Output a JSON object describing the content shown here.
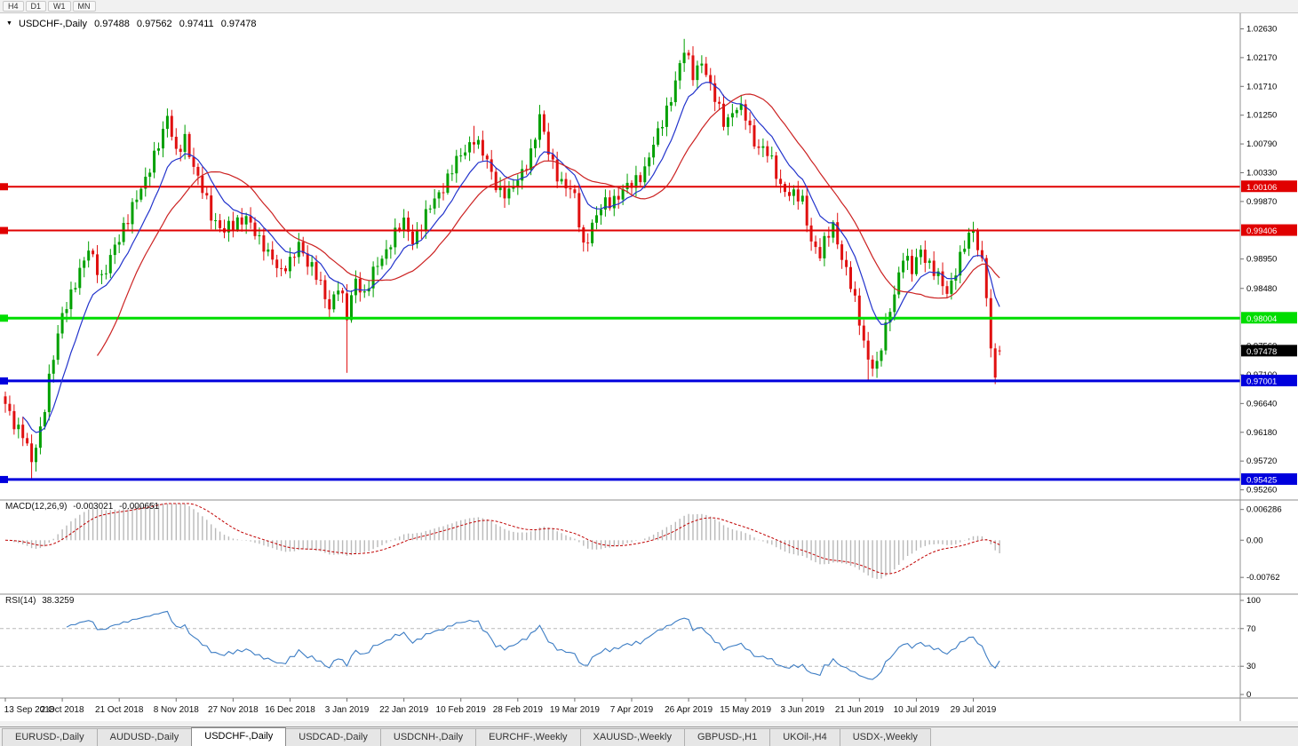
{
  "toolbar": {
    "timeframes": [
      "H4",
      "D1",
      "W1",
      "MN"
    ]
  },
  "chart_header": {
    "symbol": "USDCHF-,Daily",
    "open": "0.97488",
    "high": "0.97562",
    "low": "0.97411",
    "close": "0.97478"
  },
  "macd_panel": {
    "label": "MACD(12,26,9)",
    "value_main": "-0.003021",
    "value_signal": "-0.000651"
  },
  "rsi_panel": {
    "label": "RSI(14)",
    "value": "38.3259"
  },
  "tabs": {
    "active": "USDCHF-,Daily",
    "items": [
      "EURUSD-,Daily",
      "AUDUSD-,Daily",
      "USDCHF-,Daily",
      "USDCAD-,Daily",
      "USDCNH-,Daily",
      "EURCHF-,Weekly",
      "XAUUSD-,Weekly",
      "GBPUSD-,H1",
      "UKOil-,H4",
      "USDX-,Weekly"
    ]
  },
  "chart_data": {
    "type": "candlestick",
    "symbol": "USDCHF-",
    "timeframe": "Daily",
    "title": "USDCHF-,Daily",
    "last_bar": {
      "open": 0.97488,
      "high": 0.97562,
      "low": 0.97411,
      "close": 0.97478
    },
    "x_ticks": [
      "13 Sep 2018",
      "2 Oct 2018",
      "21 Oct 2018",
      "8 Nov 2018",
      "27 Nov 2018",
      "16 Dec 2018",
      "3 Jan 2019",
      "22 Jan 2019",
      "10 Feb 2019",
      "28 Feb 2019",
      "19 Mar 2019",
      "7 Apr 2019",
      "26 Apr 2019",
      "15 May 2019",
      "3 Jun 2019",
      "21 Jun 2019",
      "10 Jul 2019",
      "29 Jul 2019"
    ],
    "x_tick_interval_bars": 13,
    "bar_count": 228,
    "y_range": [
      0.9514,
      1.0285
    ],
    "price_scale_ticks": [
      "1.02630",
      "1.02170",
      "1.01710",
      "1.01250",
      "1.00790",
      "1.00330",
      "0.99870",
      "0.98950",
      "0.98480",
      "0.97560",
      "0.97100",
      "0.96640",
      "0.96180",
      "0.95720",
      "0.95260"
    ],
    "levels": [
      {
        "price": 1.00106,
        "label": "1.00106",
        "color": "#e00000",
        "width": 2
      },
      {
        "price": 0.99406,
        "label": "0.99406",
        "color": "#e00000",
        "width": 2
      },
      {
        "price": 0.98004,
        "label": "0.98004",
        "color": "#00dd00",
        "width": 3
      },
      {
        "price": 0.97001,
        "label": "0.97001",
        "color": "#0000dd",
        "width": 3
      },
      {
        "price": 0.95425,
        "label": "0.95425",
        "color": "#0000dd",
        "width": 3
      }
    ],
    "current_price": {
      "value": 0.97478,
      "label": "0.97478",
      "bg": "#000000"
    },
    "close_anchors": [
      [
        0,
        0.9658
      ],
      [
        2,
        0.9635
      ],
      [
        4,
        0.9619
      ],
      [
        6,
        0.9565
      ],
      [
        8,
        0.9622
      ],
      [
        10,
        0.9708
      ],
      [
        13,
        0.98
      ],
      [
        16,
        0.9863
      ],
      [
        19,
        0.9905
      ],
      [
        22,
        0.9868
      ],
      [
        24,
        0.9898
      ],
      [
        26,
        0.9923
      ],
      [
        29,
        0.9985
      ],
      [
        32,
        1.0015
      ],
      [
        35,
        1.0085
      ],
      [
        37,
        1.0122
      ],
      [
        39,
        1.0058
      ],
      [
        41,
        1.0092
      ],
      [
        44,
        1.002
      ],
      [
        47,
        0.9967
      ],
      [
        50,
        0.994
      ],
      [
        52,
        0.9946
      ],
      [
        55,
        0.9968
      ],
      [
        58,
        0.9918
      ],
      [
        61,
        0.9902
      ],
      [
        63,
        0.9872
      ],
      [
        65,
        0.9885
      ],
      [
        67,
        0.9925
      ],
      [
        69,
        0.989
      ],
      [
        72,
        0.9852
      ],
      [
        74,
        0.9822
      ],
      [
        76,
        0.9851
      ],
      [
        78,
        0.98
      ],
      [
        80,
        0.9868
      ],
      [
        82,
        0.9836
      ],
      [
        85,
        0.9886
      ],
      [
        88,
        0.9925
      ],
      [
        91,
        0.9952
      ],
      [
        93,
        0.9928
      ],
      [
        96,
        0.9962
      ],
      [
        99,
        1.0002
      ],
      [
        102,
        1.0038
      ],
      [
        104,
        1.0058
      ],
      [
        107,
        1.0092
      ],
      [
        109,
        1.0062
      ],
      [
        112,
        1.0015
      ],
      [
        115,
        0.9998
      ],
      [
        117,
        1.0018
      ],
      [
        120,
        1.0068
      ],
      [
        122,
        1.0118
      ],
      [
        124,
        1.0066
      ],
      [
        127,
        1.0018
      ],
      [
        130,
        0.9992
      ],
      [
        132,
        0.9918
      ],
      [
        134,
        0.9948
      ],
      [
        137,
        0.9985
      ],
      [
        140,
        0.9998
      ],
      [
        143,
        1.0012
      ],
      [
        146,
        1.0042
      ],
      [
        149,
        1.0092
      ],
      [
        152,
        1.0158
      ],
      [
        155,
        1.0225
      ],
      [
        157,
        1.0192
      ],
      [
        159,
        1.0215
      ],
      [
        161,
        1.0165
      ],
      [
        164,
        1.0118
      ],
      [
        167,
        1.0135
      ],
      [
        169,
        1.0122
      ],
      [
        171,
        1.0085
      ],
      [
        174,
        1.0062
      ],
      [
        177,
        1.0015
      ],
      [
        180,
        0.9995
      ],
      [
        182,
        0.9985
      ],
      [
        184,
        0.9928
      ],
      [
        186,
        0.9902
      ],
      [
        189,
        0.9948
      ],
      [
        191,
        0.9902
      ],
      [
        193,
        0.9852
      ],
      [
        195,
        0.9792
      ],
      [
        197,
        0.9738
      ],
      [
        199,
        0.9722
      ],
      [
        201,
        0.9782
      ],
      [
        203,
        0.9845
      ],
      [
        205,
        0.9902
      ],
      [
        207,
        0.9872
      ],
      [
        209,
        0.9912
      ],
      [
        211,
        0.9888
      ],
      [
        213,
        0.9862
      ],
      [
        215,
        0.984
      ],
      [
        217,
        0.9882
      ],
      [
        219,
        0.9915
      ],
      [
        221,
        0.9938
      ],
      [
        223,
        0.9895
      ],
      [
        224,
        0.9845
      ],
      [
        225,
        0.9742
      ],
      [
        226,
        0.9705
      ],
      [
        227,
        0.97478
      ]
    ],
    "high_overrides": {
      "37": 1.0128,
      "107": 1.0108,
      "122": 1.0126,
      "155": 1.0247
    },
    "low_overrides": {
      "6": 0.95425,
      "78": 0.9713,
      "197": 0.97,
      "226": 0.9695
    },
    "moving_averages": [
      {
        "name": "ma-fast",
        "period": 10,
        "method": "ema",
        "color": "#2233cc"
      },
      {
        "name": "ma-slow",
        "period": 21,
        "method": "sma",
        "color": "#cc2222"
      }
    ],
    "indicators": {
      "macd": {
        "fast": 12,
        "slow": 26,
        "signal": 9,
        "current_main": -0.003021,
        "current_signal": -0.000651,
        "scale_ticks": [
          {
            "v": 0.006286,
            "label": "0.006286"
          },
          {
            "v": 0,
            "label": "0.00"
          },
          {
            "v": -0.00762,
            "label": "-0.00762"
          }
        ],
        "hist_color": "#b9b9b9",
        "signal_color": "#c00000"
      },
      "rsi": {
        "period": 14,
        "current": 38.3259,
        "scale_ticks": [
          {
            "v": 100,
            "label": "100"
          },
          {
            "v": 70,
            "label": "70"
          },
          {
            "v": 30,
            "label": "30"
          },
          {
            "v": 0,
            "label": "0"
          }
        ],
        "guides": [
          70,
          30
        ],
        "color": "#3d7dc4"
      }
    },
    "colors": {
      "up": "#00a000",
      "down": "#e01010",
      "background": "#ffffff"
    }
  }
}
